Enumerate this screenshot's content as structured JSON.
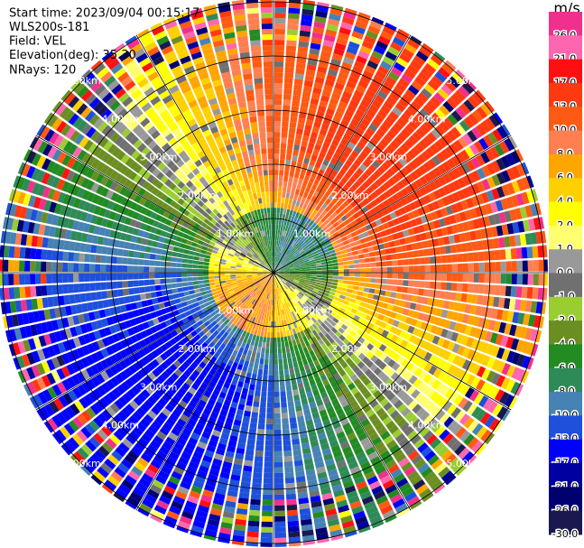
{
  "info": [
    "Start time: 2023/09/04 00:15:17",
    "WLS200s-181",
    "Field: VEL",
    "Elevation(deg): 35.30",
    "NRays: 120"
  ],
  "range_labels": [
    "1.00km",
    "2.00km",
    "3.00km",
    "4.00km",
    "5.00km"
  ],
  "colorbar": {
    "unit": "m/s",
    "levels": [
      {
        "label": "26.0",
        "color": "#f0308c"
      },
      {
        "label": "21.0",
        "color": "#ff66b0"
      },
      {
        "label": "17.0",
        "color": "#ff1010"
      },
      {
        "label": "13.0",
        "color": "#ff3a10"
      },
      {
        "label": "10.0",
        "color": "#ff5a14"
      },
      {
        "label": "8.0",
        "color": "#ff7f50"
      },
      {
        "label": "6.0",
        "color": "#ffa500"
      },
      {
        "label": "4.0",
        "color": "#ffd000"
      },
      {
        "label": "2.0",
        "color": "#ffff00"
      },
      {
        "label": "1.0",
        "color": "#ffff70"
      },
      {
        "label": "0.0",
        "color": "#999999"
      },
      {
        "label": "-1.0",
        "color": "#707070"
      },
      {
        "label": "-2.0",
        "color": "#9acd32"
      },
      {
        "label": "-4.0",
        "color": "#6b8e23"
      },
      {
        "label": "-6.0",
        "color": "#228b22"
      },
      {
        "label": "-8.0",
        "color": "#2e8b57"
      },
      {
        "label": "-10.0",
        "color": "#4682b4"
      },
      {
        "label": "-13.0",
        "color": "#1e50dc"
      },
      {
        "label": "-17.0",
        "color": "#0000ff"
      },
      {
        "label": "-21.0",
        "color": "#0000a0"
      },
      {
        "label": "-26.0",
        "color": "#000070"
      },
      {
        "label": "-30.0",
        "color": "#191950"
      }
    ]
  }
}
